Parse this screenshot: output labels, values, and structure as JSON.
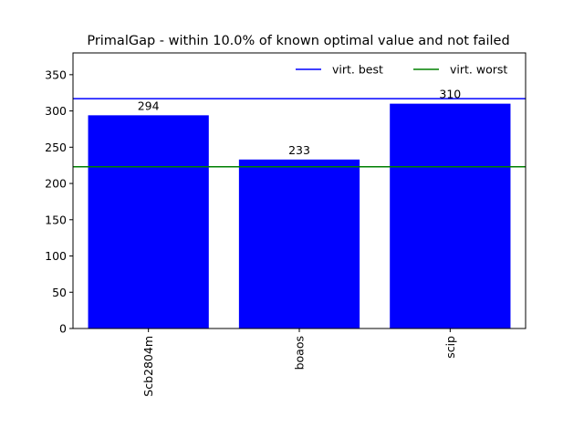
{
  "chart_data": {
    "type": "bar",
    "title": "PrimalGap - within 10.0% of known optimal value and not failed",
    "xlabel": "",
    "ylabel": "",
    "categories": [
      "Scb2804m",
      "boaos",
      "scip"
    ],
    "values": [
      294,
      233,
      310
    ],
    "data_labels": [
      "294",
      "233",
      "310"
    ],
    "bar_color": "#0000ff",
    "ylim": [
      0,
      380
    ],
    "yticks": [
      0,
      50,
      100,
      150,
      200,
      250,
      300,
      350
    ],
    "ytick_labels": [
      "0",
      "50",
      "100",
      "150",
      "200",
      "250",
      "300",
      "350"
    ],
    "x_tick_rotation": "vertical",
    "grid": false,
    "reference_lines": [
      {
        "name": "virt. best",
        "y": 317,
        "color": "#0000ff"
      },
      {
        "name": "virt. worst",
        "y": 223,
        "color": "#008000"
      }
    ],
    "legend": {
      "placement": "top-right",
      "entries": [
        "virt. best",
        "virt. worst"
      ]
    }
  }
}
